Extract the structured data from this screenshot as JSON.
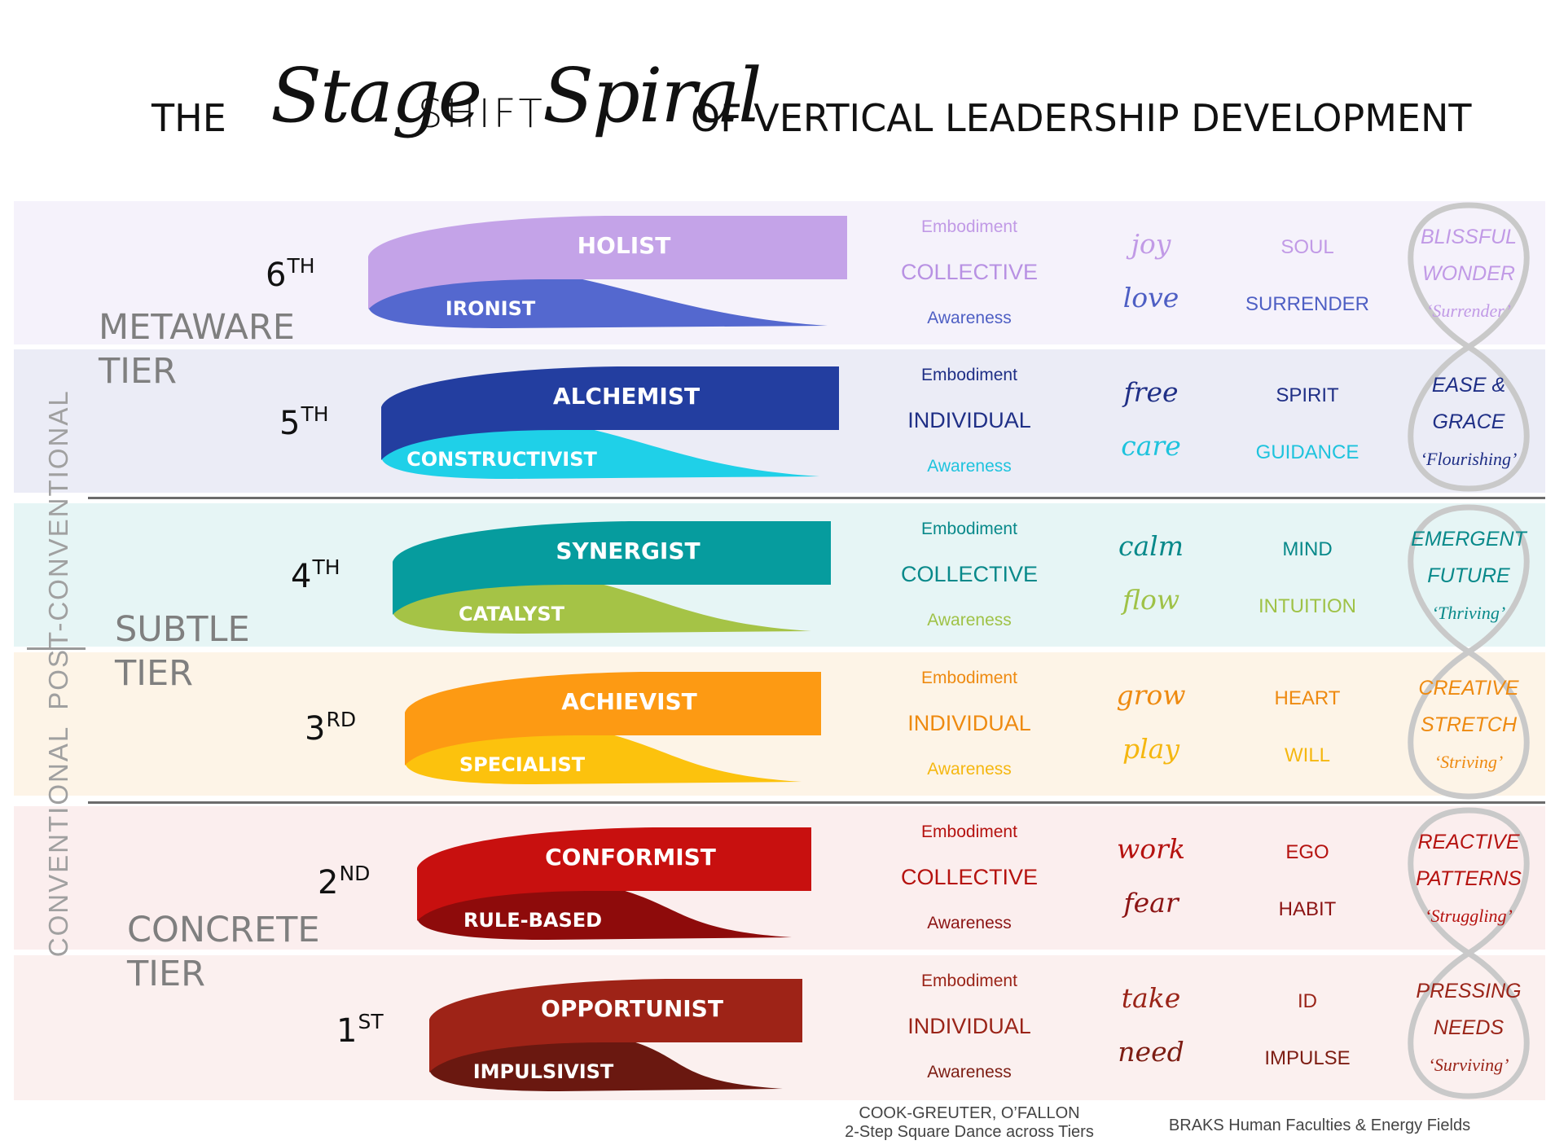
{
  "title": {
    "the": "THE",
    "stage": "Stage",
    "shift": "SHIFT",
    "spiral": "Spiral",
    "rest": "OF VERTICAL LEADERSHIP DEVELOPMENT"
  },
  "side": {
    "post_conventional": "POST-CONVENTIONAL",
    "conventional": "CONVENTIONAL"
  },
  "tiers": [
    {
      "line1": "METAWARE",
      "line2": "TIER"
    },
    {
      "line1": "SUBTLE",
      "line2": "TIER"
    },
    {
      "line1": "CONCRETE",
      "line2": "TIER"
    }
  ],
  "stages": [
    {
      "num": "6",
      "suffix": "TH",
      "upper": "HOLIST",
      "lower": "IRONIST",
      "emb": "Embodiment",
      "kind": "COLLECTIVE",
      "aw": "Awareness",
      "v1": "joy",
      "v2": "love",
      "f1": "SOUL",
      "f2": "SURRENDER",
      "s1": "BLISSFUL",
      "s2": "WONDER",
      "s3": "‘Surrender’",
      "colors": {
        "upper": "#c4a3e8",
        "lower": "#5468cf",
        "t_emb": "#c19ae6",
        "t_kind": "#b891e3",
        "t_aw": "#4e5fc4",
        "t_v1": "#c19ae6",
        "t_v2": "#4e5fc4",
        "t_f1": "#c19ae6",
        "t_f2": "#4e5fc4",
        "t_s12": "#c19ae6",
        "t_s3": "#c19ae6",
        "band": "#f5f2fb"
      }
    },
    {
      "num": "5",
      "suffix": "TH",
      "upper": "ALCHEMIST",
      "lower": "CONSTRUCTIVIST",
      "emb": "Embodiment",
      "kind": "INDIVIDUAL",
      "aw": "Awareness",
      "v1": "free",
      "v2": "care",
      "f1": "SPIRIT",
      "f2": "GUIDANCE",
      "s1": "EASE &",
      "s2": "GRACE",
      "s3": "‘Flourishing’",
      "colors": {
        "upper": "#233ea0",
        "lower": "#1fd0e8",
        "t_emb": "#1f2f86",
        "t_kind": "#1f2f86",
        "t_aw": "#1ec3dd",
        "t_v1": "#1f2f86",
        "t_v2": "#1ec3dd",
        "t_f1": "#1f2f86",
        "t_f2": "#1ec3dd",
        "t_s12": "#1f2f86",
        "t_s3": "#1f2f86",
        "band": "#ebecf6"
      }
    },
    {
      "num": "4",
      "suffix": "TH",
      "upper": "SYNERGIST",
      "lower": "CATALYST",
      "emb": "Embodiment",
      "kind": "COLLECTIVE",
      "aw": "Awareness",
      "v1": "calm",
      "v2": "flow",
      "f1": "MIND",
      "f2": "INTUITION",
      "s1": "EMERGENT",
      "s2": "FUTURE",
      "s3": "‘Thriving’",
      "colors": {
        "upper": "#069c9e",
        "lower": "#a5c346",
        "t_emb": "#08898a",
        "t_kind": "#08898a",
        "t_aw": "#9fc247",
        "t_v1": "#08898a",
        "t_v2": "#9fc247",
        "t_f1": "#08898a",
        "t_f2": "#9fc247",
        "t_s12": "#08898a",
        "t_s3": "#08898a",
        "band": "#e6f5f5"
      }
    },
    {
      "num": "3",
      "suffix": "RD",
      "upper": "ACHIEVIST",
      "lower": "SPECIALIST",
      "emb": "Embodiment",
      "kind": "INDIVIDUAL",
      "aw": "Awareness",
      "v1": "grow",
      "v2": "play",
      "f1": "HEART",
      "f2": "WILL",
      "s1": "CREATIVE",
      "s2": "STRETCH",
      "s3": "‘Striving’",
      "colors": {
        "upper": "#fd9a13",
        "lower": "#fcc20d",
        "t_emb": "#ee8a10",
        "t_kind": "#ee8a10",
        "t_aw": "#f5b710",
        "t_v1": "#ee8a10",
        "t_v2": "#f5b710",
        "t_f1": "#ee8a10",
        "t_f2": "#f5b710",
        "t_s12": "#ee8a10",
        "t_s3": "#ee8a10",
        "band": "#fdf4e7"
      }
    },
    {
      "num": "2",
      "suffix": "ND",
      "upper": "CONFORMIST",
      "lower": "RULE-BASED",
      "emb": "Embodiment",
      "kind": "COLLECTIVE",
      "aw": "Awareness",
      "v1": "work",
      "v2": "fear",
      "f1": "EGO",
      "f2": "HABIT",
      "s1": "REACTIVE",
      "s2": "PATTERNS",
      "s3": "‘Struggling’",
      "colors": {
        "upper": "#c8100f",
        "lower": "#8e0b0b",
        "t_emb": "#b5120f",
        "t_kind": "#b5120f",
        "t_aw": "#8c1414",
        "t_v1": "#b5120f",
        "t_v2": "#8c1414",
        "t_f1": "#b5120f",
        "t_f2": "#8c1414",
        "t_s12": "#b5120f",
        "t_s3": "#b5120f",
        "band": "#fbeeee"
      }
    },
    {
      "num": "1",
      "suffix": "ST",
      "upper": "OPPORTUNIST",
      "lower": "IMPULSIVIST",
      "emb": "Embodiment",
      "kind": "INDIVIDUAL",
      "aw": "Awareness",
      "v1": "take",
      "v2": "need",
      "f1": "ID",
      "f2": "IMPULSE",
      "s1": "PRESSING",
      "s2": "NEEDS",
      "s3": "‘Surviving’",
      "colors": {
        "upper": "#9e2317",
        "lower": "#6a1810",
        "t_emb": "#9a2418",
        "t_kind": "#9a2418",
        "t_aw": "#7d1d13",
        "t_v1": "#9a2418",
        "t_v2": "#7d1d13",
        "t_f1": "#9a2418",
        "t_f2": "#7d1d13",
        "t_s12": "#9a2418",
        "t_s3": "#9a2418",
        "band": "#fbf0ef"
      }
    }
  ],
  "footer": {
    "left1": "COOK-GREUTER, O’FALLON",
    "left2": "2-Step Square Dance across Tiers",
    "right": "BRAKS Human Faculties & Energy Fields"
  },
  "colors": {
    "tier_text": "#7f7f7f",
    "side_text": "#a0a0a0",
    "separator": "#6b6b6b",
    "loop_stroke": "#c9c9c9"
  }
}
